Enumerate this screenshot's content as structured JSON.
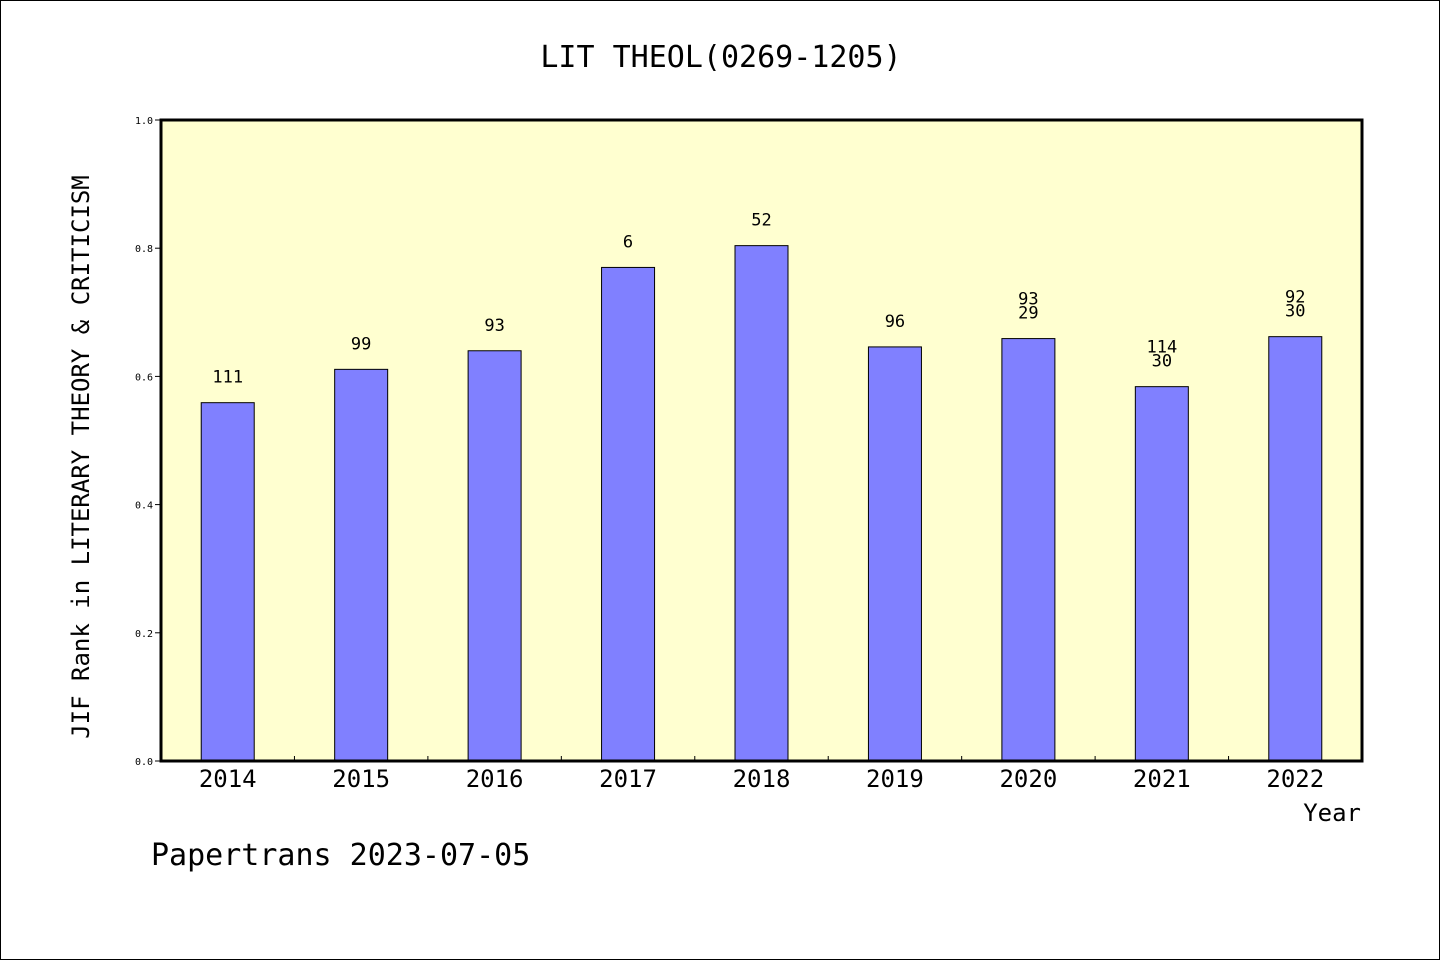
{
  "chart_data": {
    "type": "bar",
    "title": "LIT THEOL(0269-1205)",
    "xlabel": "Year",
    "ylabel": "JIF Rank in LITERARY THEORY & CRITICISM",
    "ylim": [
      0,
      1.0
    ],
    "yticks": [
      "0.0",
      "0.2",
      "0.4",
      "0.6",
      "0.8",
      "1.0"
    ],
    "ytick_values": [
      0,
      0.2,
      0.4,
      0.6,
      0.8,
      1.0
    ],
    "grid": false,
    "categories": [
      "2014",
      "2015",
      "2016",
      "2017",
      "2018",
      "2019",
      "2020",
      "2021",
      "2022"
    ],
    "values": [
      0.559,
      0.611,
      0.64,
      0.77,
      0.804,
      0.646,
      0.659,
      0.584,
      0.662
    ],
    "data_labels": [
      [
        "111"
      ],
      [
        "99"
      ],
      [
        "93"
      ],
      [
        "6"
      ],
      [
        "52"
      ],
      [
        "96"
      ],
      [
        "93",
        "29"
      ],
      [
        "114",
        "30"
      ],
      [
        "92",
        "30"
      ]
    ],
    "footer": "Papertrans 2023-07-05",
    "colors": {
      "bar_fill": "#8080ff",
      "bar_stroke": "#000000",
      "plot_background": "#ffffd0",
      "axis": "#000000"
    }
  }
}
